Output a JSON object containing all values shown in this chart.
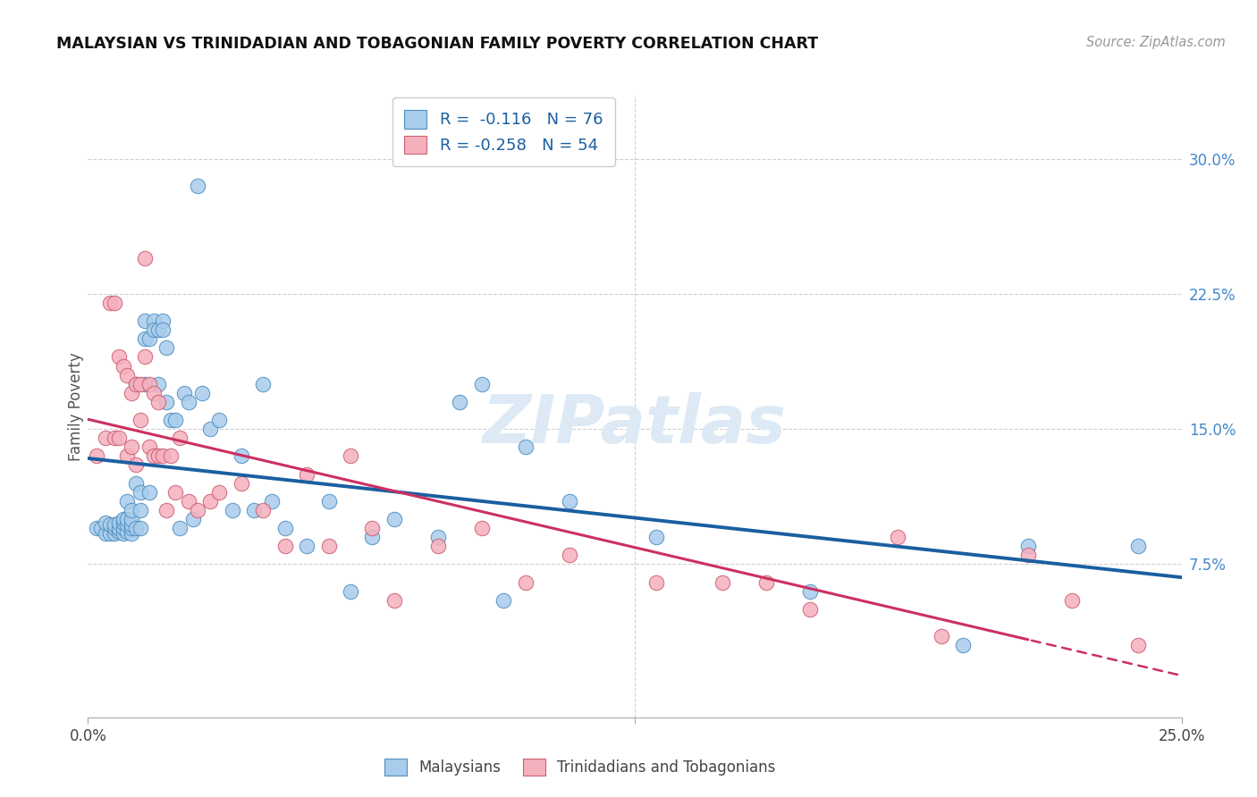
{
  "title": "MALAYSIAN VS TRINIDADIAN AND TOBAGONIAN FAMILY POVERTY CORRELATION CHART",
  "source": "Source: ZipAtlas.com",
  "ylabel": "Family Poverty",
  "yticks_labels": [
    "7.5%",
    "15.0%",
    "22.5%",
    "30.0%"
  ],
  "ytick_vals": [
    0.075,
    0.15,
    0.225,
    0.3
  ],
  "xlim": [
    0.0,
    0.25
  ],
  "ylim": [
    -0.01,
    0.335
  ],
  "legend1_r": "-0.116",
  "legend1_n": "76",
  "legend2_r": "-0.258",
  "legend2_n": "54",
  "blue_face": "#a8ccec",
  "blue_edge": "#5090c0",
  "pink_face": "#f5b0be",
  "pink_edge": "#cc6070",
  "blue_line": "#1a5fa0",
  "pink_line": "#cc3060",
  "watermark": "ZIPatlas",
  "malaysian_x": [
    0.002,
    0.003,
    0.004,
    0.004,
    0.005,
    0.005,
    0.006,
    0.006,
    0.006,
    0.007,
    0.007,
    0.007,
    0.008,
    0.008,
    0.008,
    0.008,
    0.009,
    0.009,
    0.009,
    0.009,
    0.01,
    0.01,
    0.01,
    0.01,
    0.01,
    0.011,
    0.011,
    0.011,
    0.012,
    0.012,
    0.012,
    0.013,
    0.013,
    0.013,
    0.014,
    0.014,
    0.015,
    0.015,
    0.016,
    0.016,
    0.017,
    0.017,
    0.018,
    0.018,
    0.019,
    0.02,
    0.021,
    0.022,
    0.023,
    0.024,
    0.025,
    0.026,
    0.028,
    0.03,
    0.033,
    0.035,
    0.038,
    0.04,
    0.042,
    0.045,
    0.05,
    0.055,
    0.06,
    0.065,
    0.07,
    0.08,
    0.085,
    0.09,
    0.095,
    0.1,
    0.11,
    0.13,
    0.165,
    0.2,
    0.215,
    0.24
  ],
  "malaysian_y": [
    0.095,
    0.095,
    0.092,
    0.098,
    0.092,
    0.097,
    0.092,
    0.095,
    0.097,
    0.093,
    0.095,
    0.098,
    0.092,
    0.095,
    0.098,
    0.1,
    0.093,
    0.097,
    0.1,
    0.11,
    0.092,
    0.095,
    0.097,
    0.1,
    0.105,
    0.12,
    0.095,
    0.175,
    0.105,
    0.115,
    0.095,
    0.175,
    0.21,
    0.2,
    0.115,
    0.2,
    0.21,
    0.205,
    0.175,
    0.205,
    0.21,
    0.205,
    0.195,
    0.165,
    0.155,
    0.155,
    0.095,
    0.17,
    0.165,
    0.1,
    0.285,
    0.17,
    0.15,
    0.155,
    0.105,
    0.135,
    0.105,
    0.175,
    0.11,
    0.095,
    0.085,
    0.11,
    0.06,
    0.09,
    0.1,
    0.09,
    0.165,
    0.175,
    0.055,
    0.14,
    0.11,
    0.09,
    0.06,
    0.03,
    0.085,
    0.085
  ],
  "trinidadian_x": [
    0.002,
    0.004,
    0.005,
    0.006,
    0.006,
    0.007,
    0.007,
    0.008,
    0.009,
    0.009,
    0.01,
    0.01,
    0.011,
    0.011,
    0.012,
    0.012,
    0.013,
    0.013,
    0.014,
    0.014,
    0.015,
    0.015,
    0.016,
    0.016,
    0.017,
    0.018,
    0.019,
    0.02,
    0.021,
    0.023,
    0.025,
    0.028,
    0.03,
    0.035,
    0.04,
    0.045,
    0.05,
    0.055,
    0.06,
    0.065,
    0.07,
    0.08,
    0.09,
    0.1,
    0.11,
    0.13,
    0.145,
    0.155,
    0.165,
    0.185,
    0.195,
    0.215,
    0.225,
    0.24
  ],
  "trinidadian_y": [
    0.135,
    0.145,
    0.22,
    0.145,
    0.22,
    0.145,
    0.19,
    0.185,
    0.18,
    0.135,
    0.17,
    0.14,
    0.175,
    0.13,
    0.175,
    0.155,
    0.245,
    0.19,
    0.175,
    0.14,
    0.17,
    0.135,
    0.165,
    0.135,
    0.135,
    0.105,
    0.135,
    0.115,
    0.145,
    0.11,
    0.105,
    0.11,
    0.115,
    0.12,
    0.105,
    0.085,
    0.125,
    0.085,
    0.135,
    0.095,
    0.055,
    0.085,
    0.095,
    0.065,
    0.08,
    0.065,
    0.065,
    0.065,
    0.05,
    0.09,
    0.035,
    0.08,
    0.055,
    0.03
  ]
}
